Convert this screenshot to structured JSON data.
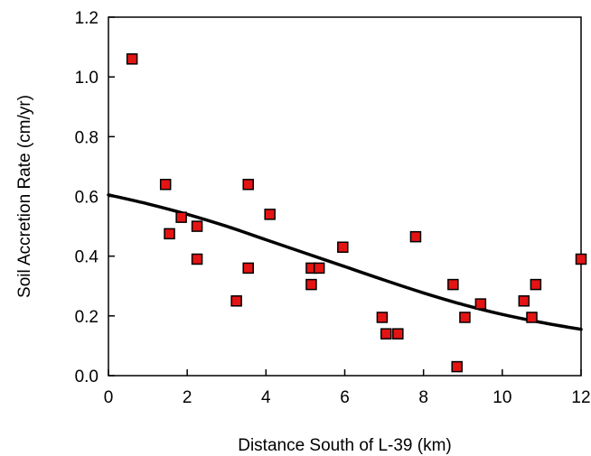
{
  "chart_data": {
    "type": "scatter",
    "title": "",
    "xlabel": "Distance South of L-39 (km)",
    "ylabel": "Soil Accretion Rate (cm/yr)",
    "xlim": [
      0,
      12
    ],
    "ylim": [
      0.0,
      1.2
    ],
    "x_ticks": [
      "0",
      "2",
      "4",
      "6",
      "8",
      "10",
      "12"
    ],
    "y_ticks": [
      "0.0",
      "0.2",
      "0.4",
      "0.6",
      "0.8",
      "1.0",
      "1.2"
    ],
    "grid": false,
    "legend": "none",
    "marker_color": "#e41414",
    "marker_edge_color": "#000000",
    "curve_color": "#000000",
    "points": [
      {
        "x": 0.6,
        "y": 1.06
      },
      {
        "x": 1.45,
        "y": 0.64
      },
      {
        "x": 1.55,
        "y": 0.475
      },
      {
        "x": 1.85,
        "y": 0.53
      },
      {
        "x": 2.25,
        "y": 0.5
      },
      {
        "x": 2.25,
        "y": 0.39
      },
      {
        "x": 3.25,
        "y": 0.25
      },
      {
        "x": 3.55,
        "y": 0.64
      },
      {
        "x": 3.55,
        "y": 0.36
      },
      {
        "x": 4.1,
        "y": 0.54
      },
      {
        "x": 5.15,
        "y": 0.36
      },
      {
        "x": 5.15,
        "y": 0.305
      },
      {
        "x": 5.35,
        "y": 0.36
      },
      {
        "x": 5.95,
        "y": 0.43
      },
      {
        "x": 6.95,
        "y": 0.195
      },
      {
        "x": 7.05,
        "y": 0.14
      },
      {
        "x": 7.35,
        "y": 0.14
      },
      {
        "x": 7.8,
        "y": 0.465
      },
      {
        "x": 8.75,
        "y": 0.305
      },
      {
        "x": 8.85,
        "y": 0.03
      },
      {
        "x": 9.05,
        "y": 0.195
      },
      {
        "x": 9.45,
        "y": 0.24
      },
      {
        "x": 10.55,
        "y": 0.25
      },
      {
        "x": 10.75,
        "y": 0.195
      },
      {
        "x": 10.85,
        "y": 0.305
      },
      {
        "x": 12.0,
        "y": 0.39
      }
    ],
    "fit_curve": [
      {
        "x": 0,
        "y": 0.605
      },
      {
        "x": 1,
        "y": 0.575
      },
      {
        "x": 2,
        "y": 0.54
      },
      {
        "x": 3,
        "y": 0.5
      },
      {
        "x": 4,
        "y": 0.455
      },
      {
        "x": 5,
        "y": 0.41
      },
      {
        "x": 6,
        "y": 0.365
      },
      {
        "x": 7,
        "y": 0.32
      },
      {
        "x": 8,
        "y": 0.277
      },
      {
        "x": 9,
        "y": 0.238
      },
      {
        "x": 10,
        "y": 0.205
      },
      {
        "x": 11,
        "y": 0.178
      },
      {
        "x": 12,
        "y": 0.155
      }
    ]
  }
}
